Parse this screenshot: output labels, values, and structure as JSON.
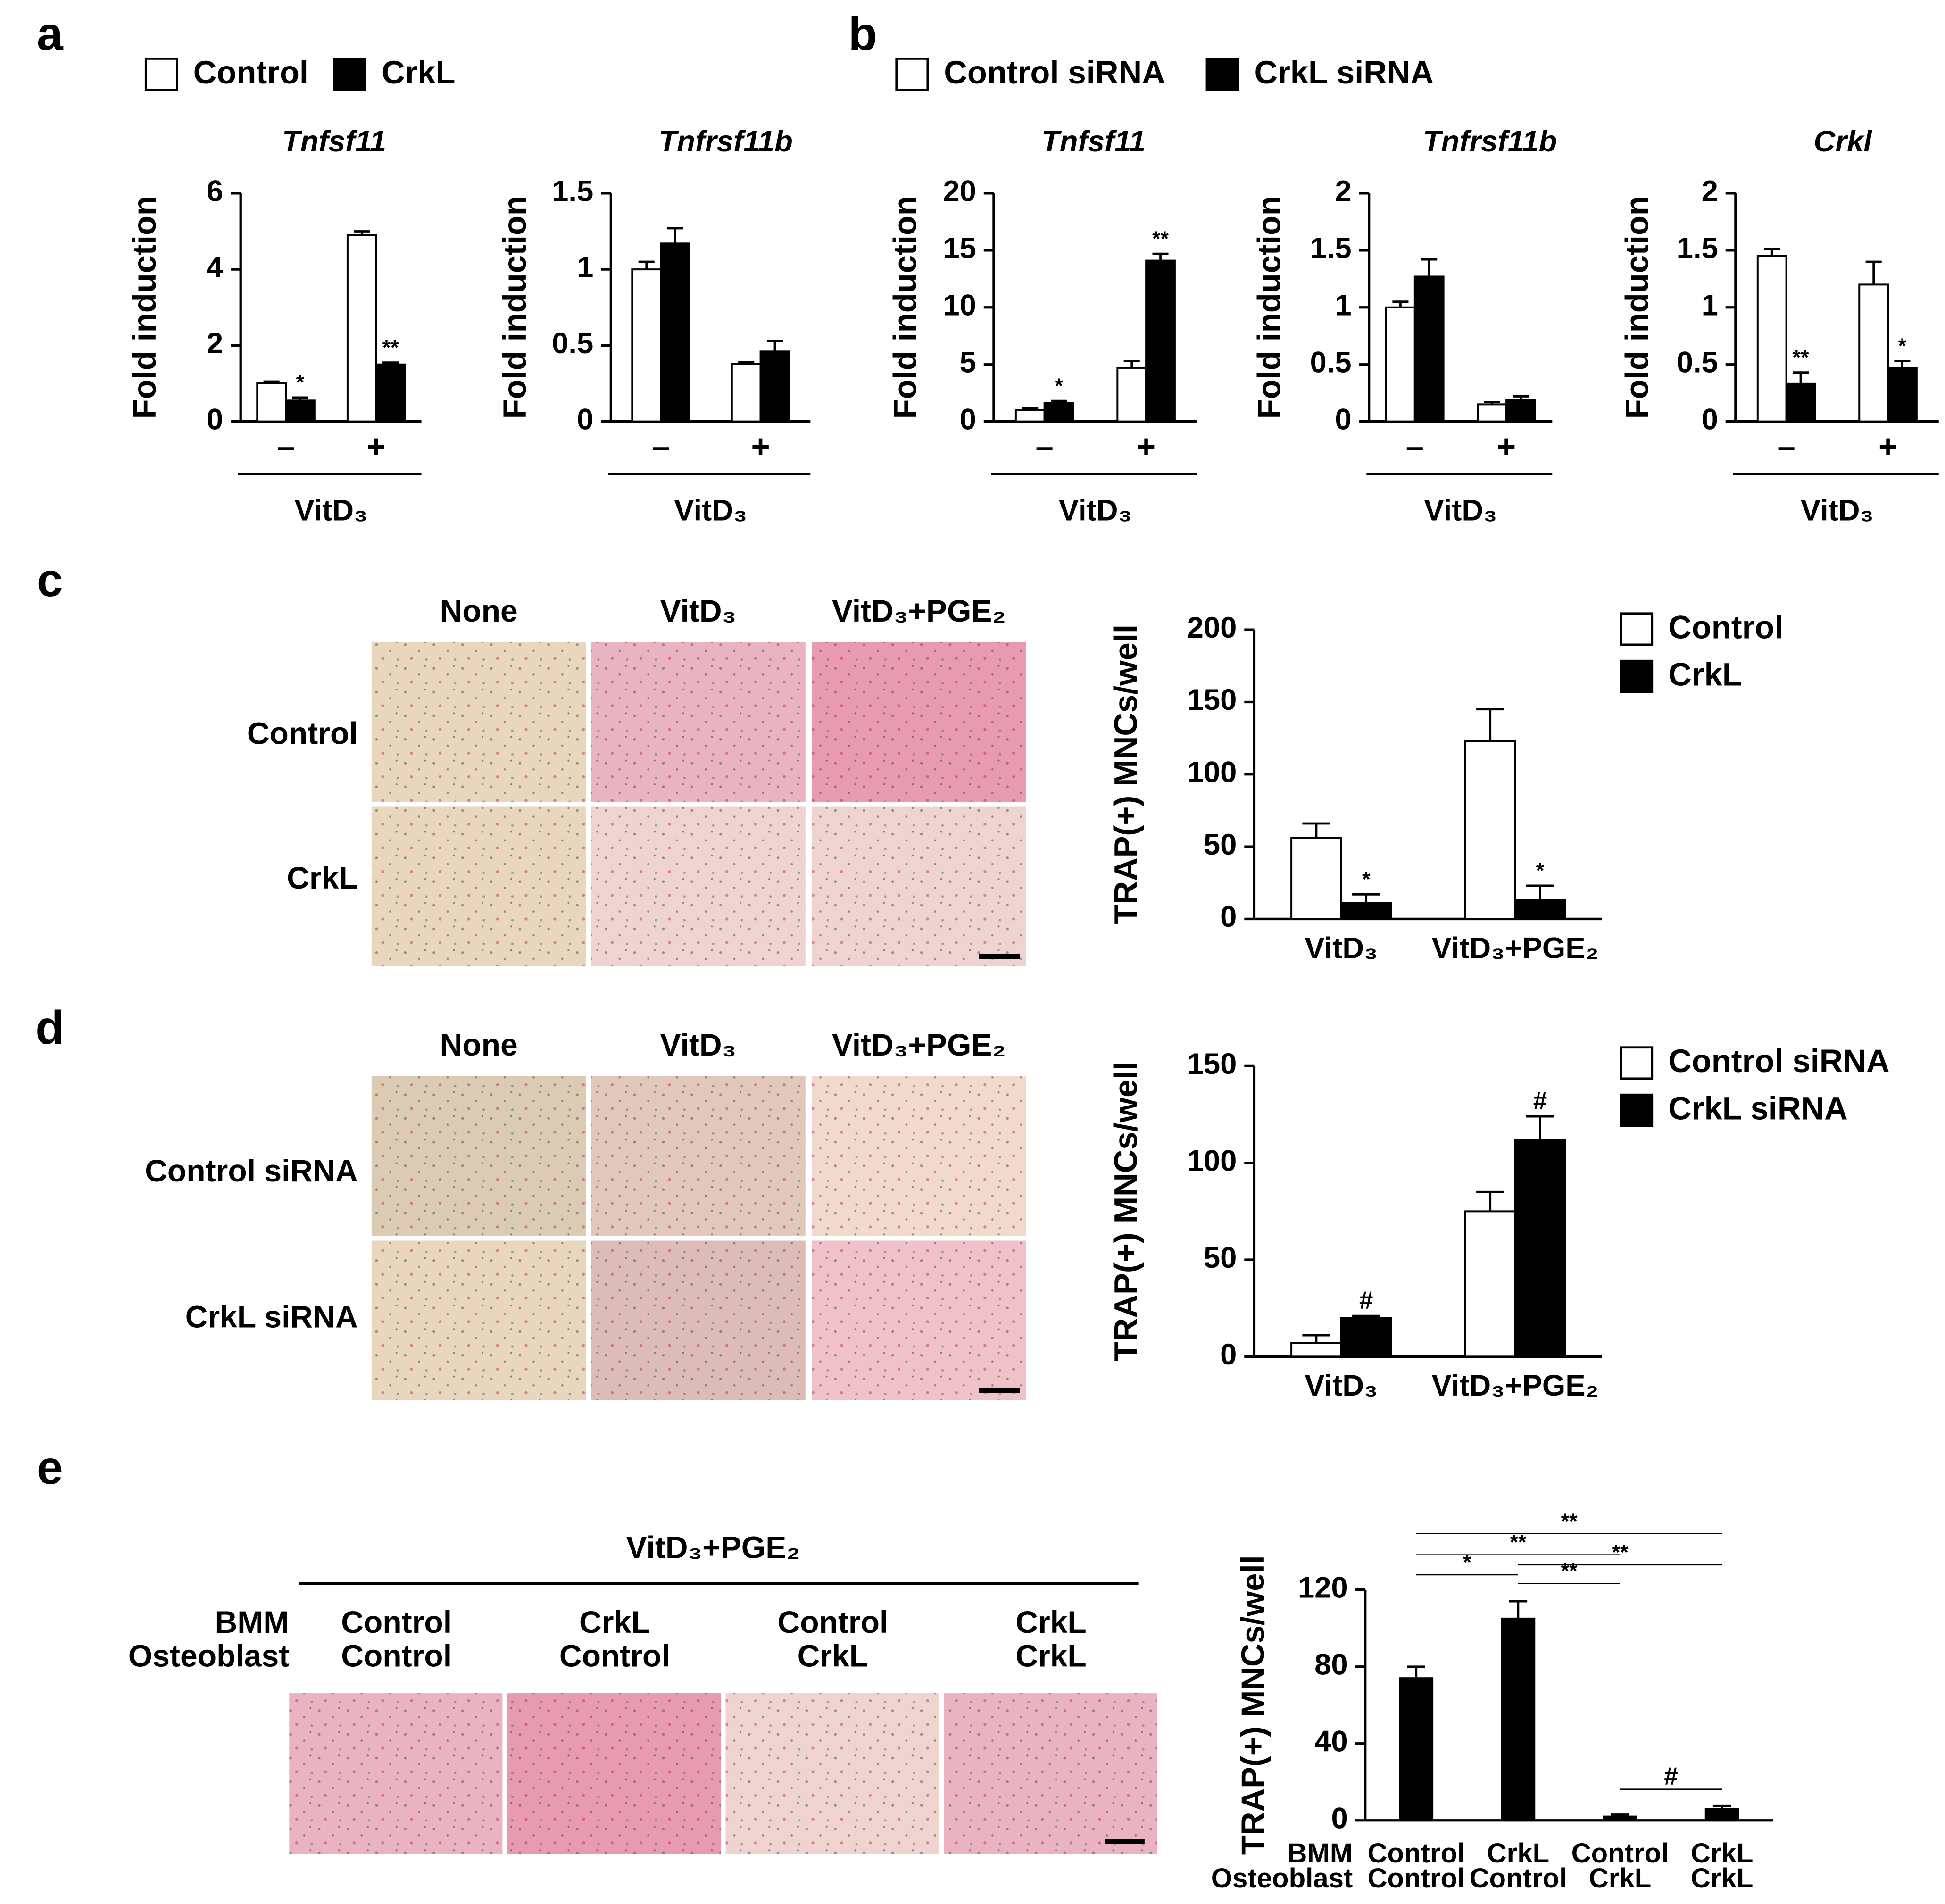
{
  "panel_labels": [
    "a",
    "b",
    "c",
    "d",
    "e"
  ],
  "micrographs": [
    {
      "columns": [
        "None",
        "VitD₃",
        "VitD₃+PGE₂"
      ],
      "rows": [
        "Control",
        "CrkL"
      ]
    },
    {
      "columns": [
        "None",
        "VitD₃",
        "VitD₃+PGE₂"
      ],
      "rows": [
        "Control siRNA",
        "CrkL siRNA"
      ]
    },
    {
      "header": "VitD₃+PGE₂",
      "row_labels": [
        "BMM",
        "Osteoblast"
      ],
      "columns": [
        [
          "Control",
          "Control"
        ],
        [
          "CrkL",
          "Control"
        ],
        [
          "Control",
          "CrkL"
        ],
        [
          "CrkL",
          "CrkL"
        ]
      ]
    }
  ],
  "chart_data": [
    {
      "type": "bar",
      "title": "Tnfsf11",
      "ylabel": "Fold induction",
      "xlabel": "VitD₃",
      "categories": [
        "–",
        "+"
      ],
      "series": [
        {
          "name": "Control",
          "color": "#ffffff",
          "values": [
            1.0,
            4.9
          ],
          "errors": [
            0.05,
            0.1
          ]
        },
        {
          "name": "CrkL",
          "color": "#000000",
          "values": [
            0.55,
            1.5
          ],
          "errors": [
            0.08,
            0.05
          ],
          "significance": [
            "*",
            "**"
          ]
        }
      ],
      "ylim": [
        0,
        6
      ],
      "yticks": [
        0,
        2,
        4,
        6
      ]
    },
    {
      "type": "bar",
      "title": "Tnfrsf11b",
      "ylabel": "Fold induction",
      "xlabel": "VitD₃",
      "categories": [
        "–",
        "+"
      ],
      "series": [
        {
          "color": "#ffffff",
          "values": [
            1.0,
            0.38
          ],
          "errors": [
            0.05,
            0.01
          ]
        },
        {
          "color": "#000000",
          "values": [
            1.17,
            0.46
          ],
          "errors": [
            0.1,
            0.07
          ]
        }
      ],
      "ylim": [
        0,
        1.5
      ],
      "yticks": [
        0,
        0.5,
        1,
        1.5
      ]
    },
    {
      "type": "bar",
      "title": "Tnfsf11",
      "ylabel": "Fold induction",
      "xlabel": "VitD₃",
      "categories": [
        "–",
        "+"
      ],
      "series": [
        {
          "name": "Control siRNA",
          "color": "#ffffff",
          "values": [
            1.0,
            4.7
          ],
          "errors": [
            0.2,
            0.6
          ]
        },
        {
          "name": "CrkL siRNA",
          "color": "#000000",
          "values": [
            1.6,
            14.1
          ],
          "errors": [
            0.2,
            0.6
          ],
          "significance": [
            "*",
            "**"
          ]
        }
      ],
      "ylim": [
        0,
        20
      ],
      "yticks": [
        0,
        5,
        10,
        15,
        20
      ]
    },
    {
      "type": "bar",
      "title": "Tnfrsf11b",
      "ylabel": "Fold induction",
      "xlabel": "VitD₃",
      "categories": [
        "–",
        "+"
      ],
      "series": [
        {
          "color": "#ffffff",
          "values": [
            1.0,
            0.15
          ],
          "errors": [
            0.05,
            0.02
          ]
        },
        {
          "color": "#000000",
          "values": [
            1.27,
            0.19
          ],
          "errors": [
            0.15,
            0.03
          ]
        }
      ],
      "ylim": [
        0,
        2
      ],
      "yticks": [
        0,
        0.5,
        1,
        1.5,
        2
      ]
    },
    {
      "type": "bar",
      "title": "Crkl",
      "ylabel": "Fold induction",
      "xlabel": "VitD₃",
      "categories": [
        "–",
        "+"
      ],
      "series": [
        {
          "color": "#ffffff",
          "values": [
            1.45,
            1.2
          ],
          "errors": [
            0.06,
            0.2
          ]
        },
        {
          "color": "#000000",
          "values": [
            0.33,
            0.47
          ],
          "errors": [
            0.1,
            0.06
          ],
          "significance": [
            "**",
            "*"
          ]
        }
      ],
      "ylim": [
        0,
        2
      ],
      "yticks": [
        0,
        0.5,
        1,
        1.5,
        2
      ]
    },
    {
      "type": "bar",
      "ylabel": "TRAP(+) MNCs/well",
      "categories": [
        "VitD₃",
        "VitD₃+PGE₂"
      ],
      "series": [
        {
          "name": "Control",
          "color": "#ffffff",
          "values": [
            56,
            123
          ],
          "errors": [
            10,
            22
          ]
        },
        {
          "name": "CrkL",
          "color": "#000000",
          "values": [
            11,
            13
          ],
          "errors": [
            6,
            10
          ],
          "significance": [
            "*",
            "*"
          ]
        }
      ],
      "ylim": [
        0,
        200
      ],
      "yticks": [
        0,
        50,
        100,
        150,
        200
      ]
    },
    {
      "type": "bar",
      "ylabel": "TRAP(+) MNCs/well",
      "categories": [
        "VitD₃",
        "VitD₃+PGE₂"
      ],
      "series": [
        {
          "name": "Control siRNA",
          "color": "#ffffff",
          "values": [
            7,
            75
          ],
          "errors": [
            4,
            10
          ]
        },
        {
          "name": "CrkL siRNA",
          "color": "#000000",
          "values": [
            20,
            112
          ],
          "errors": [
            1,
            12
          ],
          "significance": [
            "#",
            "#"
          ]
        }
      ],
      "ylim": [
        0,
        150
      ],
      "yticks": [
        0,
        50,
        100,
        150
      ]
    },
    {
      "type": "bar",
      "ylabel": "TRAP(+) MNCs/well",
      "category_rows": [
        "BMM",
        "Osteoblast"
      ],
      "categories": [
        "Control",
        "CrkL",
        "Control",
        "CrkL"
      ],
      "categories2": [
        "Control",
        "Control",
        "CrkL",
        "CrkL"
      ],
      "series": [
        {
          "color": "#000000",
          "values": [
            74,
            105,
            2,
            6
          ],
          "errors": [
            6,
            9,
            1,
            1.5
          ]
        }
      ],
      "comparisons": [
        {
          "pair": [
            0,
            3
          ],
          "label": "**"
        },
        {
          "pair": [
            0,
            2
          ],
          "label": "**"
        },
        {
          "pair": [
            1,
            3
          ],
          "label": "**"
        },
        {
          "pair": [
            0,
            1
          ],
          "label": "*"
        },
        {
          "pair": [
            1,
            2
          ],
          "label": "**"
        },
        {
          "pair": [
            2,
            3
          ],
          "label": "#"
        }
      ],
      "ylim": [
        0,
        120
      ],
      "yticks": [
        0,
        40,
        80,
        120
      ]
    }
  ]
}
